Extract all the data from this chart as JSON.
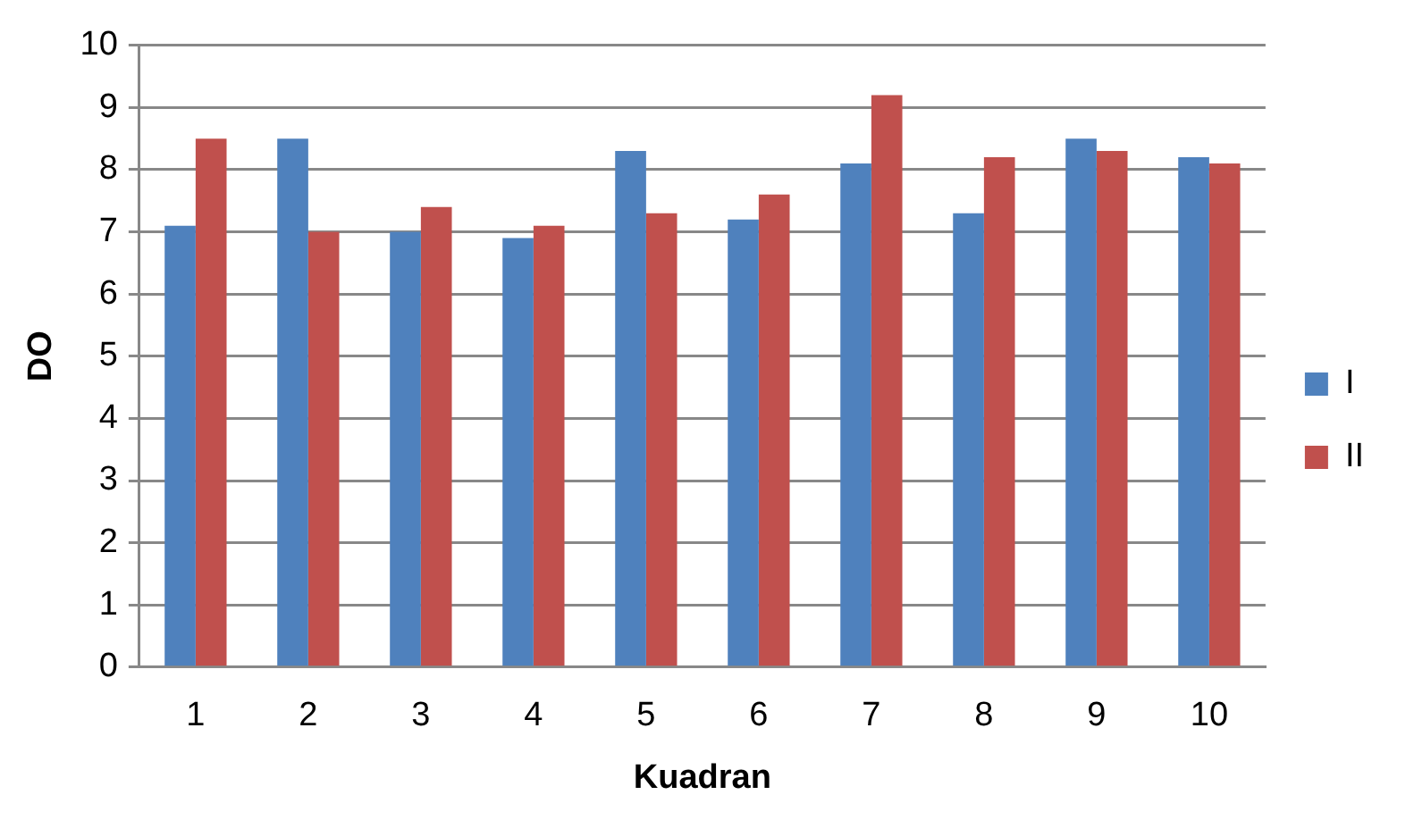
{
  "chart_data": {
    "type": "bar",
    "xlabel": "Kuadran",
    "ylabel": "DO",
    "categories": [
      "1",
      "2",
      "3",
      "4",
      "5",
      "6",
      "7",
      "8",
      "9",
      "10"
    ],
    "series": [
      {
        "name": "I",
        "color": "#4f81bd",
        "values": [
          7.1,
          8.5,
          7.0,
          6.9,
          8.3,
          7.2,
          8.1,
          7.3,
          8.5,
          8.2
        ]
      },
      {
        "name": "II",
        "color": "#c0504d",
        "values": [
          8.5,
          7.0,
          7.4,
          7.1,
          7.3,
          7.6,
          9.2,
          8.2,
          8.3,
          8.1
        ]
      }
    ],
    "ylim": [
      0,
      10
    ],
    "yticks": [
      0,
      1,
      2,
      3,
      4,
      5,
      6,
      7,
      8,
      9,
      10
    ],
    "grid": "y",
    "legend": "right"
  }
}
